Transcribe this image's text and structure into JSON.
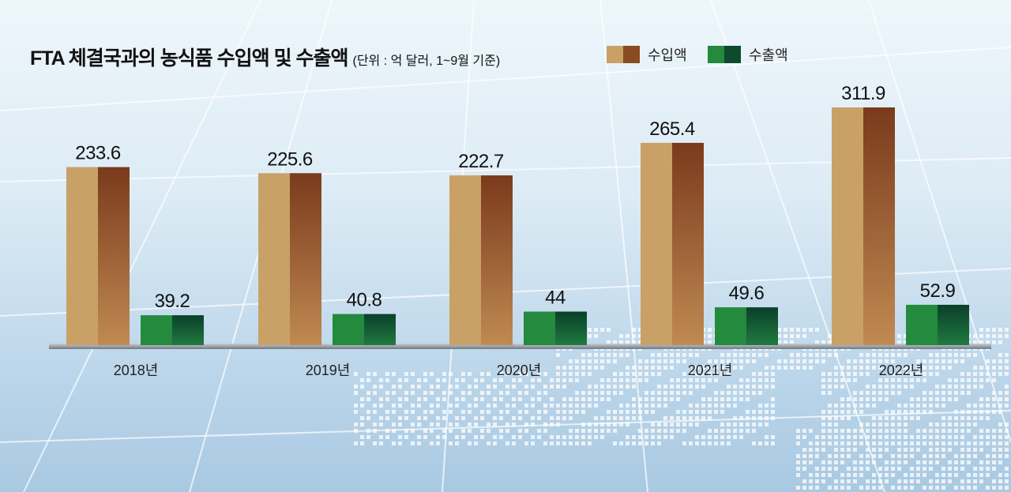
{
  "chart_data": {
    "type": "bar",
    "title": "FTA 체결국과의 농식품 수입액 및 수출액",
    "subtitle": "(단위 : 억 달러, 1~9월 기준)",
    "categories": [
      "2018년",
      "2019년",
      "2020년",
      "2021년",
      "2022년"
    ],
    "series": [
      {
        "name": "수입액",
        "values": [
          233.6,
          225.6,
          222.7,
          265.4,
          311.9
        ],
        "colors": [
          "#c9a166",
          "#8a4a22"
        ]
      },
      {
        "name": "수출액",
        "values": [
          39.2,
          40.8,
          44,
          49.6,
          52.9
        ],
        "colors": [
          "#238a3e",
          "#0e4a2e"
        ]
      }
    ],
    "value_labels": [
      [
        "233.6",
        "225.6",
        "222.7",
        "265.4",
        "311.9"
      ],
      [
        "39.2",
        "40.8",
        "44",
        "49.6",
        "52.9"
      ]
    ],
    "legend_position": "top-right",
    "grid": false
  }
}
